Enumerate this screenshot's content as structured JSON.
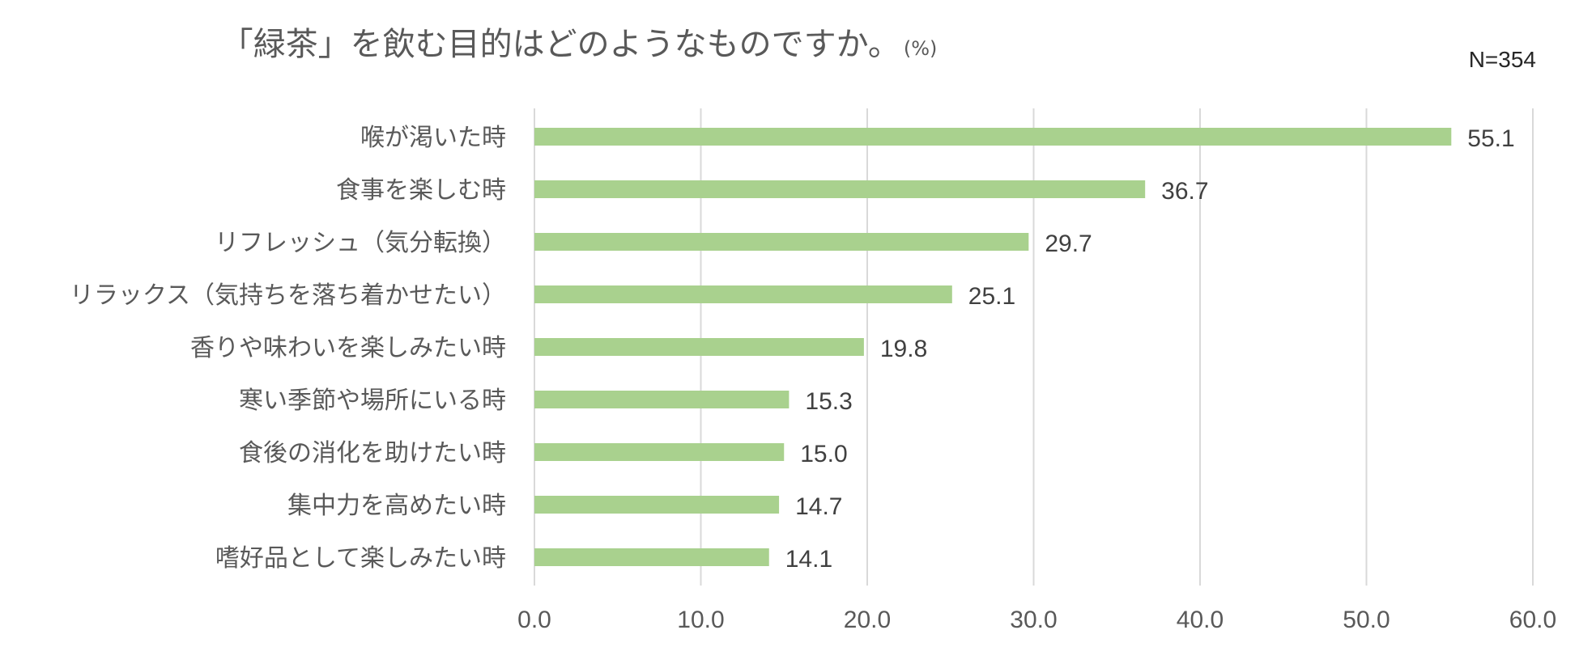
{
  "chart_data": {
    "type": "bar",
    "orientation": "horizontal",
    "title": "「緑茶」を飲む目的はどのようなものですか。",
    "unit": "(%)",
    "sample_size": "N=354",
    "categories": [
      "喉が渇いた時",
      "食事を楽しむ時",
      "リフレッシュ（気分転換）",
      "リラックス（気持ちを落ち着かせたい）",
      "香りや味わいを楽しみたい時",
      "寒い季節や場所にいる時",
      "食後の消化を助けたい時",
      "集中力を高めたい時",
      "嗜好品として楽しみたい時"
    ],
    "values": [
      55.1,
      36.7,
      29.7,
      25.1,
      19.8,
      15.3,
      15.0,
      14.7,
      14.1
    ],
    "value_labels": [
      "55.1",
      "36.7",
      "29.7",
      "25.1",
      "19.8",
      "15.3",
      "15.0",
      "14.7",
      "14.1"
    ],
    "xlim": [
      0,
      60
    ],
    "x_ticks": [
      "0.0",
      "10.0",
      "20.0",
      "30.0",
      "40.0",
      "50.0",
      "60.0"
    ],
    "grid": true,
    "bar_color": "#a9d18e"
  }
}
